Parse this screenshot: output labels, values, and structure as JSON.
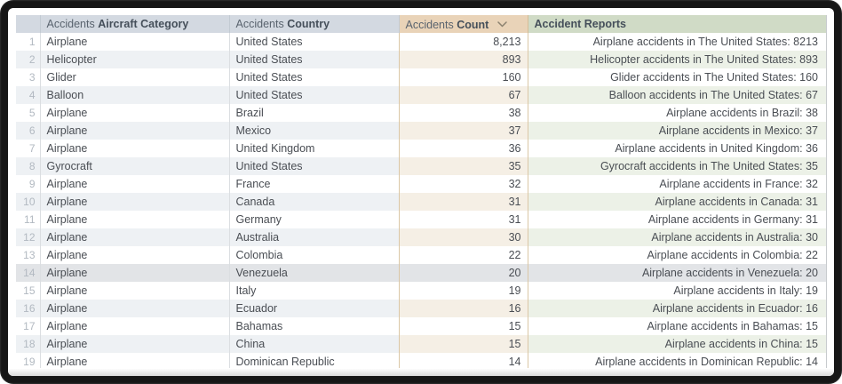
{
  "table": {
    "columns": [
      {
        "prefix": "Accidents",
        "label": "Aircraft Category"
      },
      {
        "prefix": "Accidents",
        "label": "Country"
      },
      {
        "prefix": "Accidents",
        "label": "Count",
        "sort": "descending"
      },
      {
        "prefix": "",
        "label": "Accident Reports"
      }
    ],
    "highlighted_row": 14,
    "rows": [
      {
        "n": "1",
        "category": "Airplane",
        "country": "United States",
        "count": "8,213",
        "report": "Airplane accidents in The United States: 8213"
      },
      {
        "n": "2",
        "category": "Helicopter",
        "country": "United States",
        "count": "893",
        "report": "Helicopter accidents in The United States: 893"
      },
      {
        "n": "3",
        "category": "Glider",
        "country": "United States",
        "count": "160",
        "report": "Glider accidents in The United States: 160"
      },
      {
        "n": "4",
        "category": "Balloon",
        "country": "United States",
        "count": "67",
        "report": "Balloon accidents in The United States: 67"
      },
      {
        "n": "5",
        "category": "Airplane",
        "country": "Brazil",
        "count": "38",
        "report": "Airplane accidents in Brazil: 38"
      },
      {
        "n": "6",
        "category": "Airplane",
        "country": "Mexico",
        "count": "37",
        "report": "Airplane accidents in Mexico: 37"
      },
      {
        "n": "7",
        "category": "Airplane",
        "country": "United Kingdom",
        "count": "36",
        "report": "Airplane accidents in United Kingdom: 36"
      },
      {
        "n": "8",
        "category": "Gyrocraft",
        "country": "United States",
        "count": "35",
        "report": "Gyrocraft accidents in The United States: 35"
      },
      {
        "n": "9",
        "category": "Airplane",
        "country": "France",
        "count": "32",
        "report": "Airplane accidents in France: 32"
      },
      {
        "n": "10",
        "category": "Airplane",
        "country": "Canada",
        "count": "31",
        "report": "Airplane accidents in Canada: 31"
      },
      {
        "n": "11",
        "category": "Airplane",
        "country": "Germany",
        "count": "31",
        "report": "Airplane accidents in Germany: 31"
      },
      {
        "n": "12",
        "category": "Airplane",
        "country": "Australia",
        "count": "30",
        "report": "Airplane accidents in Australia: 30"
      },
      {
        "n": "13",
        "category": "Airplane",
        "country": "Colombia",
        "count": "22",
        "report": "Airplane accidents in Colombia: 22"
      },
      {
        "n": "14",
        "category": "Airplane",
        "country": "Venezuela",
        "count": "20",
        "report": "Airplane accidents in Venezuela: 20"
      },
      {
        "n": "15",
        "category": "Airplane",
        "country": "Italy",
        "count": "19",
        "report": "Airplane accidents in Italy: 19"
      },
      {
        "n": "16",
        "category": "Airplane",
        "country": "Ecuador",
        "count": "16",
        "report": "Airplane accidents in Ecuador: 16"
      },
      {
        "n": "17",
        "category": "Airplane",
        "country": "Bahamas",
        "count": "15",
        "report": "Airplane accidents in Bahamas: 15"
      },
      {
        "n": "18",
        "category": "Airplane",
        "country": "China",
        "count": "15",
        "report": "Airplane accidents in China: 15"
      },
      {
        "n": "19",
        "category": "Airplane",
        "country": "Dominican Republic",
        "count": "14",
        "report": "Airplane accidents in Dominican Republic: 14"
      }
    ]
  },
  "colors": {
    "frame": "#161616",
    "header_blue": "#d3d9e1",
    "header_tan": "#e9d3b8",
    "header_green": "#d0dbc6",
    "stripe_blue": "#eef1f4",
    "stripe_tan": "#f5efe5",
    "stripe_green": "#ecf1e7",
    "highlight_row": "#e2e4e7",
    "count_border": "#dbc7a6",
    "cell_text": "#4a4e54",
    "row_number_text": "#b2b9c1"
  }
}
